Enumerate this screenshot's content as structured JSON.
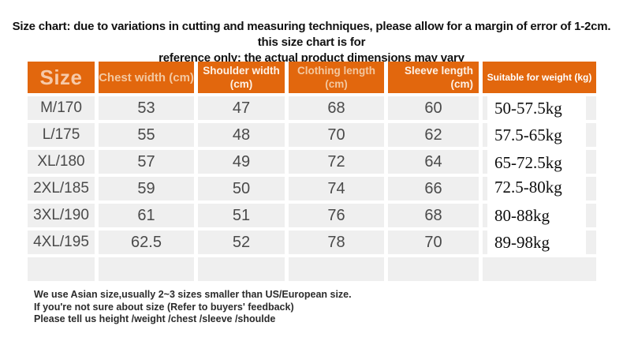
{
  "title": {
    "line1": "Size chart: due to variations in cutting and measuring techniques, please allow for a margin of error of 1-2cm. this size chart is for",
    "line2": "reference only; the actual product dimensions may vary"
  },
  "table": {
    "headers": {
      "size": "Size",
      "chest": "Chest width (cm)",
      "shoulder_line1": "Shoulder width",
      "shoulder_line2": "(cm)",
      "clothing_line1": "Clothing length",
      "clothing_line2": "(cm)",
      "sleeve_line1": "Sleeve length",
      "sleeve_line2": "(cm)",
      "weight": "Suitable for weight (kg)"
    },
    "rows": [
      {
        "size": "M/170",
        "chest": "53",
        "shoulder": "47",
        "clothing": "68",
        "sleeve": "60",
        "weight": "50-57.5kg"
      },
      {
        "size": "L/175",
        "chest": "55",
        "shoulder": "48",
        "clothing": "70",
        "sleeve": "62",
        "weight": "57.5-65kg"
      },
      {
        "size": "XL/180",
        "chest": "57",
        "shoulder": "49",
        "clothing": "72",
        "sleeve": "64",
        "weight": "65-72.5kg"
      },
      {
        "size": "2XL/185",
        "chest": "59",
        "shoulder": "50",
        "clothing": "74",
        "sleeve": "66",
        "weight": "72.5-80kg"
      },
      {
        "size": "3XL/190",
        "chest": "61",
        "shoulder": "51",
        "clothing": "76",
        "sleeve": "68",
        "weight": "80-88kg"
      },
      {
        "size": "4XL/195",
        "chest": "62.5",
        "shoulder": "52",
        "clothing": "78",
        "sleeve": "70",
        "weight": "89-98kg"
      }
    ]
  },
  "notes": {
    "line1": "We use Asian size,usually 2~3 sizes smaller than US/European size.",
    "line2": "If you're not sure about size (Refer to buyers' feedback)",
    "line3": "Please tell us height /weight /chest /sleeve /shoulde"
  },
  "colors": {
    "header_orange": "#e2670d",
    "cell_gray": "#efefef",
    "header_text_peach": "#f3c79f",
    "header_text_white": "#fdf1e6"
  }
}
